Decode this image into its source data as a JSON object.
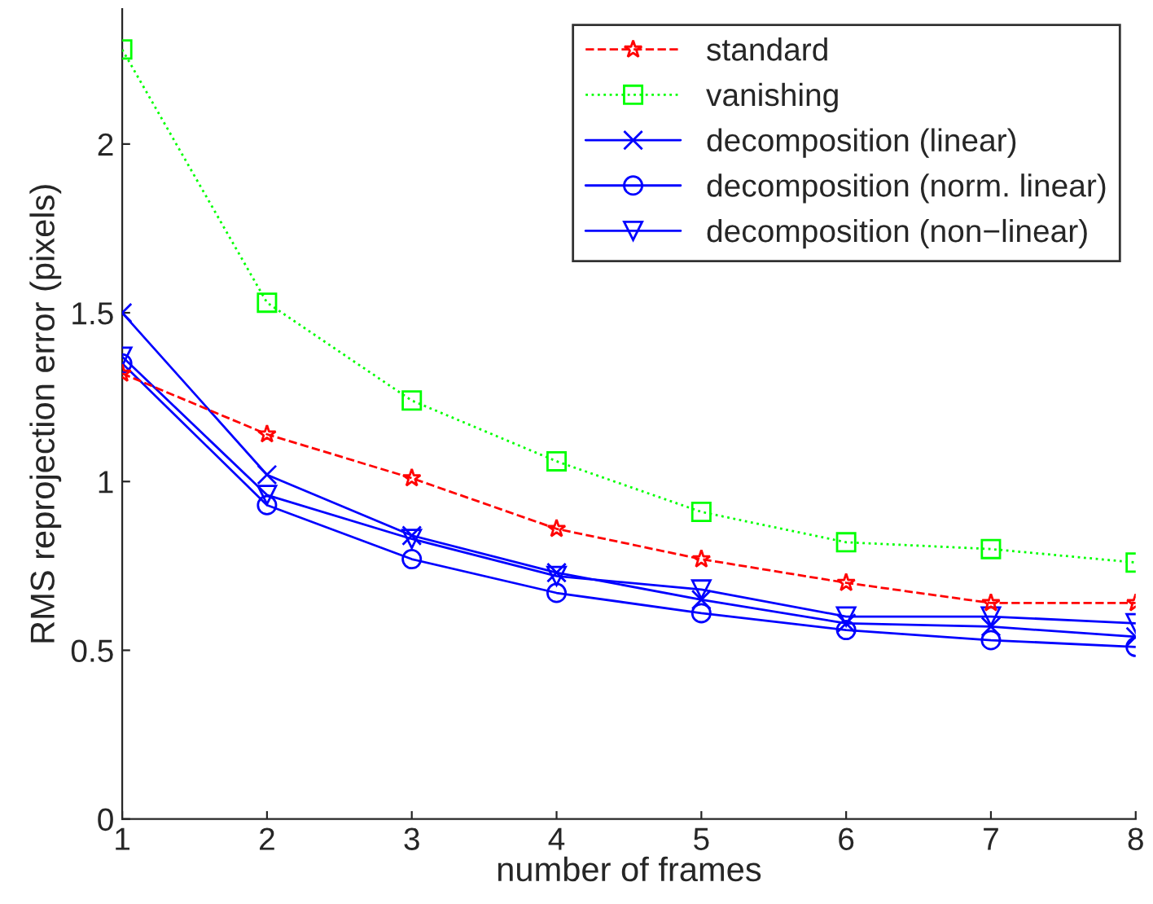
{
  "chart_data": {
    "type": "line",
    "xlabel": "number of frames",
    "ylabel": "RMS reprojection error (pixels)",
    "x": [
      1,
      2,
      3,
      4,
      5,
      6,
      7,
      8
    ],
    "series": [
      {
        "name": "standard",
        "color": "#ff0000",
        "marker": "star",
        "line_style": "dashed",
        "values": [
          1.32,
          1.14,
          1.01,
          0.86,
          0.77,
          0.7,
          0.64,
          0.64
        ]
      },
      {
        "name": "vanishing",
        "color": "#00ff00",
        "marker": "square",
        "line_style": "dotted",
        "values": [
          2.28,
          1.53,
          1.24,
          1.06,
          0.91,
          0.82,
          0.8,
          0.76
        ]
      },
      {
        "name": "decomposition (linear)",
        "color": "#0000ff",
        "marker": "cross",
        "line_style": "solid",
        "values": [
          1.5,
          1.02,
          0.84,
          0.73,
          0.65,
          0.58,
          0.57,
          0.54
        ]
      },
      {
        "name": "decomposition (norm. linear)",
        "color": "#0000ff",
        "marker": "circle",
        "line_style": "solid",
        "values": [
          1.35,
          0.93,
          0.77,
          0.67,
          0.61,
          0.56,
          0.53,
          0.51
        ]
      },
      {
        "name": "decomposition (non−linear)",
        "color": "#0000ff",
        "marker": "triangle",
        "line_style": "solid",
        "values": [
          1.37,
          0.96,
          0.83,
          0.72,
          0.68,
          0.6,
          0.6,
          0.58
        ]
      }
    ],
    "xlim": [
      1,
      8
    ],
    "xticks": [
      1,
      2,
      3,
      4,
      5,
      6,
      7,
      8
    ],
    "ylim": [
      0,
      2.4
    ],
    "yticks": [
      0,
      0.5,
      1,
      1.5,
      2
    ],
    "grid": false,
    "legend": "top right"
  }
}
